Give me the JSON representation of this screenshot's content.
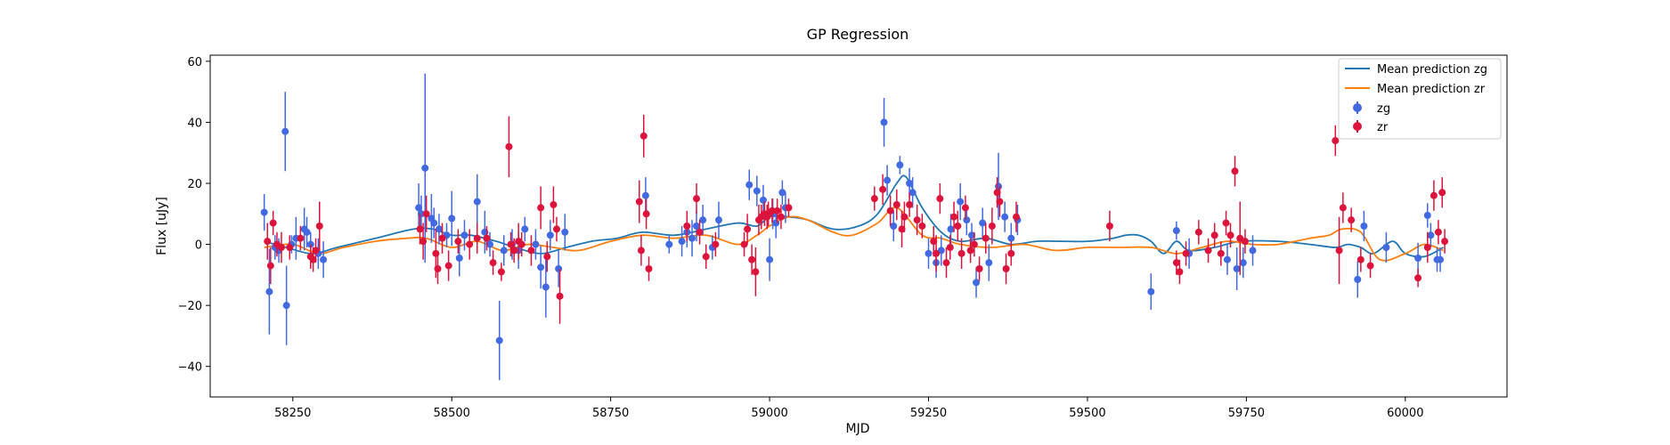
{
  "chart_data": {
    "type": "scatter",
    "title": "GP Regression",
    "xlabel": "MJD",
    "ylabel": "Flux [uJy]",
    "xlim": [
      58120,
      60160
    ],
    "ylim": [
      -50,
      62
    ],
    "xticks": [
      58250,
      58500,
      58750,
      59000,
      59250,
      59500,
      59750,
      60000
    ],
    "yticks": [
      -40,
      -20,
      0,
      20,
      40,
      60
    ],
    "grid": false,
    "legend": {
      "placement": "top-right",
      "labels": [
        "Mean prediction zg",
        "Mean prediction zr",
        "zg",
        "zr"
      ]
    },
    "colors": {
      "zg_line": "#1f77b4",
      "zr_line": "#ff7f0e",
      "zg_points": "#4169e1",
      "zr_points": "#dc143c"
    },
    "series": [
      {
        "name": "Mean prediction zg",
        "kind": "line",
        "x": [
          58205,
          58240,
          58280,
          58320,
          58380,
          58440,
          58470,
          58500,
          58530,
          58570,
          58600,
          58640,
          58680,
          58720,
          58760,
          58800,
          58850,
          58900,
          58950,
          58980,
          59000,
          59030,
          59060,
          59100,
          59140,
          59170,
          59200,
          59215,
          59240,
          59270,
          59300,
          59340,
          59380,
          59420,
          59460,
          59500,
          59540,
          59560,
          59580,
          59600,
          59620,
          59640,
          59660,
          59700,
          59740,
          59800,
          59850,
          59890,
          59910,
          59930,
          59950,
          59980,
          60000,
          60030,
          60060
        ],
        "y": [
          1,
          -1,
          -3,
          -1,
          2,
          5,
          5,
          3,
          3,
          1,
          -1,
          -3,
          -1,
          1,
          2,
          4,
          3,
          5,
          7,
          6,
          9,
          9,
          8,
          5,
          6,
          10,
          20,
          22,
          12,
          4,
          1,
          2,
          0,
          1,
          1,
          1,
          2,
          3,
          3,
          1,
          -3,
          1,
          -2,
          -1,
          1,
          1,
          0,
          -1,
          0,
          -1,
          -3,
          1,
          -3,
          -4,
          -1
        ]
      },
      {
        "name": "Mean prediction zr",
        "kind": "line",
        "x": [
          58205,
          58250,
          58290,
          58330,
          58380,
          58430,
          58460,
          58500,
          58540,
          58580,
          58620,
          58660,
          58700,
          58750,
          58800,
          58850,
          58900,
          58950,
          58980,
          59000,
          59030,
          59060,
          59100,
          59130,
          59170,
          59200,
          59240,
          59270,
          59300,
          59350,
          59400,
          59450,
          59500,
          59550,
          59600,
          59640,
          59680,
          59720,
          59760,
          59800,
          59850,
          59880,
          59900,
          59930,
          59960,
          60000,
          60030,
          60060
        ],
        "y": [
          -1,
          0,
          -3,
          -1,
          1,
          2,
          2,
          -1,
          1,
          -2,
          0,
          -1,
          -2,
          1,
          3,
          2,
          3,
          0,
          3,
          6,
          9,
          8,
          4,
          3,
          7,
          12,
          3,
          2,
          0,
          -1,
          0,
          -2,
          -1,
          -1,
          -1,
          -3,
          -1,
          1,
          0,
          0,
          2,
          3,
          5,
          4,
          -5,
          -3,
          0,
          -2
        ]
      },
      {
        "name": "zg",
        "kind": "errorbar",
        "x": [
          58205,
          58213,
          58222,
          58228,
          58238,
          58240,
          58248,
          58255,
          58268,
          58272,
          58278,
          58290,
          58298,
          58448,
          58452,
          58458,
          58468,
          58472,
          58480,
          58492,
          58500,
          58512,
          58520,
          58540,
          58552,
          58560,
          58575,
          58582,
          58595,
          58605,
          58615,
          58632,
          58640,
          58648,
          58655,
          58668,
          58678,
          58805,
          58842,
          58862,
          58870,
          58878,
          58885,
          58895,
          58910,
          58920,
          58968,
          58980,
          58990,
          59000,
          59005,
          59010,
          59020,
          59025,
          59180,
          59185,
          59195,
          59205,
          59220,
          59225,
          59250,
          59262,
          59270,
          59285,
          59300,
          59310,
          59318,
          59325,
          59335,
          59345,
          59360,
          59370,
          59380,
          59390,
          59600,
          59640,
          59660,
          59720,
          59735,
          59745,
          59760,
          59925,
          59935,
          59970,
          60020,
          60035,
          60040,
          60050,
          60055
        ],
        "y": [
          10.5,
          -15.5,
          -1,
          -2,
          37,
          -20,
          0,
          2,
          5,
          4,
          0,
          -3,
          -5,
          12,
          10,
          25,
          8.5,
          7,
          5,
          3,
          8.5,
          -4.5,
          3,
          14,
          4,
          0,
          -31.5,
          -2,
          0,
          -2,
          5,
          0,
          -7.5,
          -14,
          3,
          -8,
          4,
          16,
          0,
          1,
          4,
          2,
          6,
          8,
          -1,
          8,
          19.5,
          17.5,
          14.5,
          -5,
          10,
          7,
          17,
          12,
          40,
          21,
          6,
          26,
          20,
          17,
          -3,
          -6,
          -2,
          5,
          14,
          8,
          3,
          -12.5,
          7,
          -6,
          19,
          9,
          2,
          8,
          -15.5,
          4.5,
          -3,
          -5,
          -8,
          -6,
          -2,
          -11.5,
          6,
          -1,
          -4.5,
          9.5,
          3,
          -5,
          -5
        ],
        "err": [
          6,
          14,
          4,
          4,
          13,
          13,
          3,
          7,
          7,
          5,
          4,
          5,
          6,
          8,
          6,
          31,
          8,
          5,
          5,
          4,
          9,
          6,
          5,
          9,
          7,
          4,
          13,
          5,
          5,
          6,
          4,
          5,
          7,
          10,
          5,
          6,
          6,
          6,
          3,
          5,
          5,
          6,
          5,
          5,
          4,
          6,
          5,
          5,
          5,
          7,
          5,
          5,
          4,
          5,
          8,
          5,
          5,
          3,
          5,
          5,
          5,
          5,
          5,
          5,
          6,
          5,
          4,
          5,
          5,
          6,
          11,
          5,
          5,
          5,
          6,
          3,
          5,
          5,
          7,
          5,
          5,
          6,
          5,
          5,
          5,
          4,
          4,
          4,
          4
        ]
      },
      {
        "name": "zr",
        "kind": "errorbar",
        "x": [
          58210,
          58215,
          58219,
          58225,
          58232,
          58245,
          58262,
          58278,
          58282,
          58286,
          58292,
          58450,
          58455,
          58460,
          58475,
          58478,
          58485,
          58495,
          58510,
          58528,
          58540,
          58555,
          58565,
          58578,
          58590,
          58593,
          58598,
          58605,
          58610,
          58625,
          58640,
          58650,
          58660,
          58665,
          58670,
          58795,
          58798,
          58802,
          58806,
          58810,
          58870,
          58885,
          58890,
          58900,
          58915,
          58960,
          58965,
          58972,
          58978,
          58983,
          58987,
          58992,
          58996,
          58998,
          59004,
          59012,
          59018,
          59030,
          59165,
          59178,
          59190,
          59200,
          59208,
          59212,
          59220,
          59232,
          59240,
          59258,
          59262,
          59268,
          59278,
          59284,
          59290,
          59296,
          59302,
          59308,
          59316,
          59322,
          59330,
          59340,
          59350,
          59358,
          59362,
          59372,
          59380,
          59388,
          59535,
          59640,
          59645,
          59655,
          59675,
          59690,
          59700,
          59710,
          59718,
          59725,
          59732,
          59740,
          59748,
          59890,
          59896,
          59902,
          59915,
          59930,
          59945,
          60020,
          60035,
          60045,
          60052,
          60058,
          60062
        ],
        "y": [
          1,
          -7,
          7,
          0,
          -1,
          -1,
          2,
          -4,
          -5,
          -2,
          6,
          5,
          1,
          10,
          -3,
          -8,
          2,
          -7,
          1,
          0,
          2,
          2,
          -6,
          -9,
          32,
          0,
          -2,
          1,
          0,
          -2,
          12,
          -4,
          13,
          5,
          -17,
          14,
          -2,
          35.5,
          10,
          -8,
          6,
          15,
          4,
          -4,
          0,
          0,
          5,
          -5,
          -9,
          8,
          9,
          10,
          9,
          10,
          11,
          11,
          9,
          12,
          15,
          18,
          11,
          13,
          5,
          9,
          13,
          8,
          6,
          1,
          -3,
          15,
          -6,
          -1,
          9,
          6,
          -3,
          12,
          -2,
          0,
          -8,
          2,
          6,
          17,
          14,
          -8,
          -3,
          9,
          6,
          -6,
          -9,
          -3,
          4,
          -2,
          3,
          -3,
          7,
          3,
          24,
          2,
          1,
          34,
          -2,
          12,
          8,
          -5,
          -7,
          -11,
          -1,
          16,
          4,
          17,
          1
        ],
        "err": [
          6,
          6,
          4,
          4,
          5,
          4,
          4,
          4,
          4,
          4,
          8,
          5,
          6,
          6,
          8,
          5,
          5,
          5,
          4,
          5,
          5,
          4,
          4,
          3,
          10,
          4,
          4,
          6,
          4,
          5,
          7,
          5,
          6,
          4,
          9,
          7,
          5,
          7,
          5,
          4,
          5,
          5,
          4,
          4,
          4,
          4,
          5,
          5,
          8,
          5,
          4,
          4,
          4,
          4,
          4,
          4,
          4,
          3,
          4,
          5,
          5,
          5,
          6,
          5,
          4,
          5,
          4,
          5,
          6,
          5,
          5,
          4,
          5,
          5,
          5,
          4,
          4,
          4,
          4,
          5,
          6,
          5,
          5,
          5,
          4,
          5,
          5,
          4,
          4,
          4,
          4,
          4,
          4,
          4,
          4,
          4,
          5,
          12,
          4,
          5,
          11,
          5,
          4,
          4,
          4,
          3,
          5,
          5,
          4,
          5,
          4
        ]
      }
    ]
  }
}
